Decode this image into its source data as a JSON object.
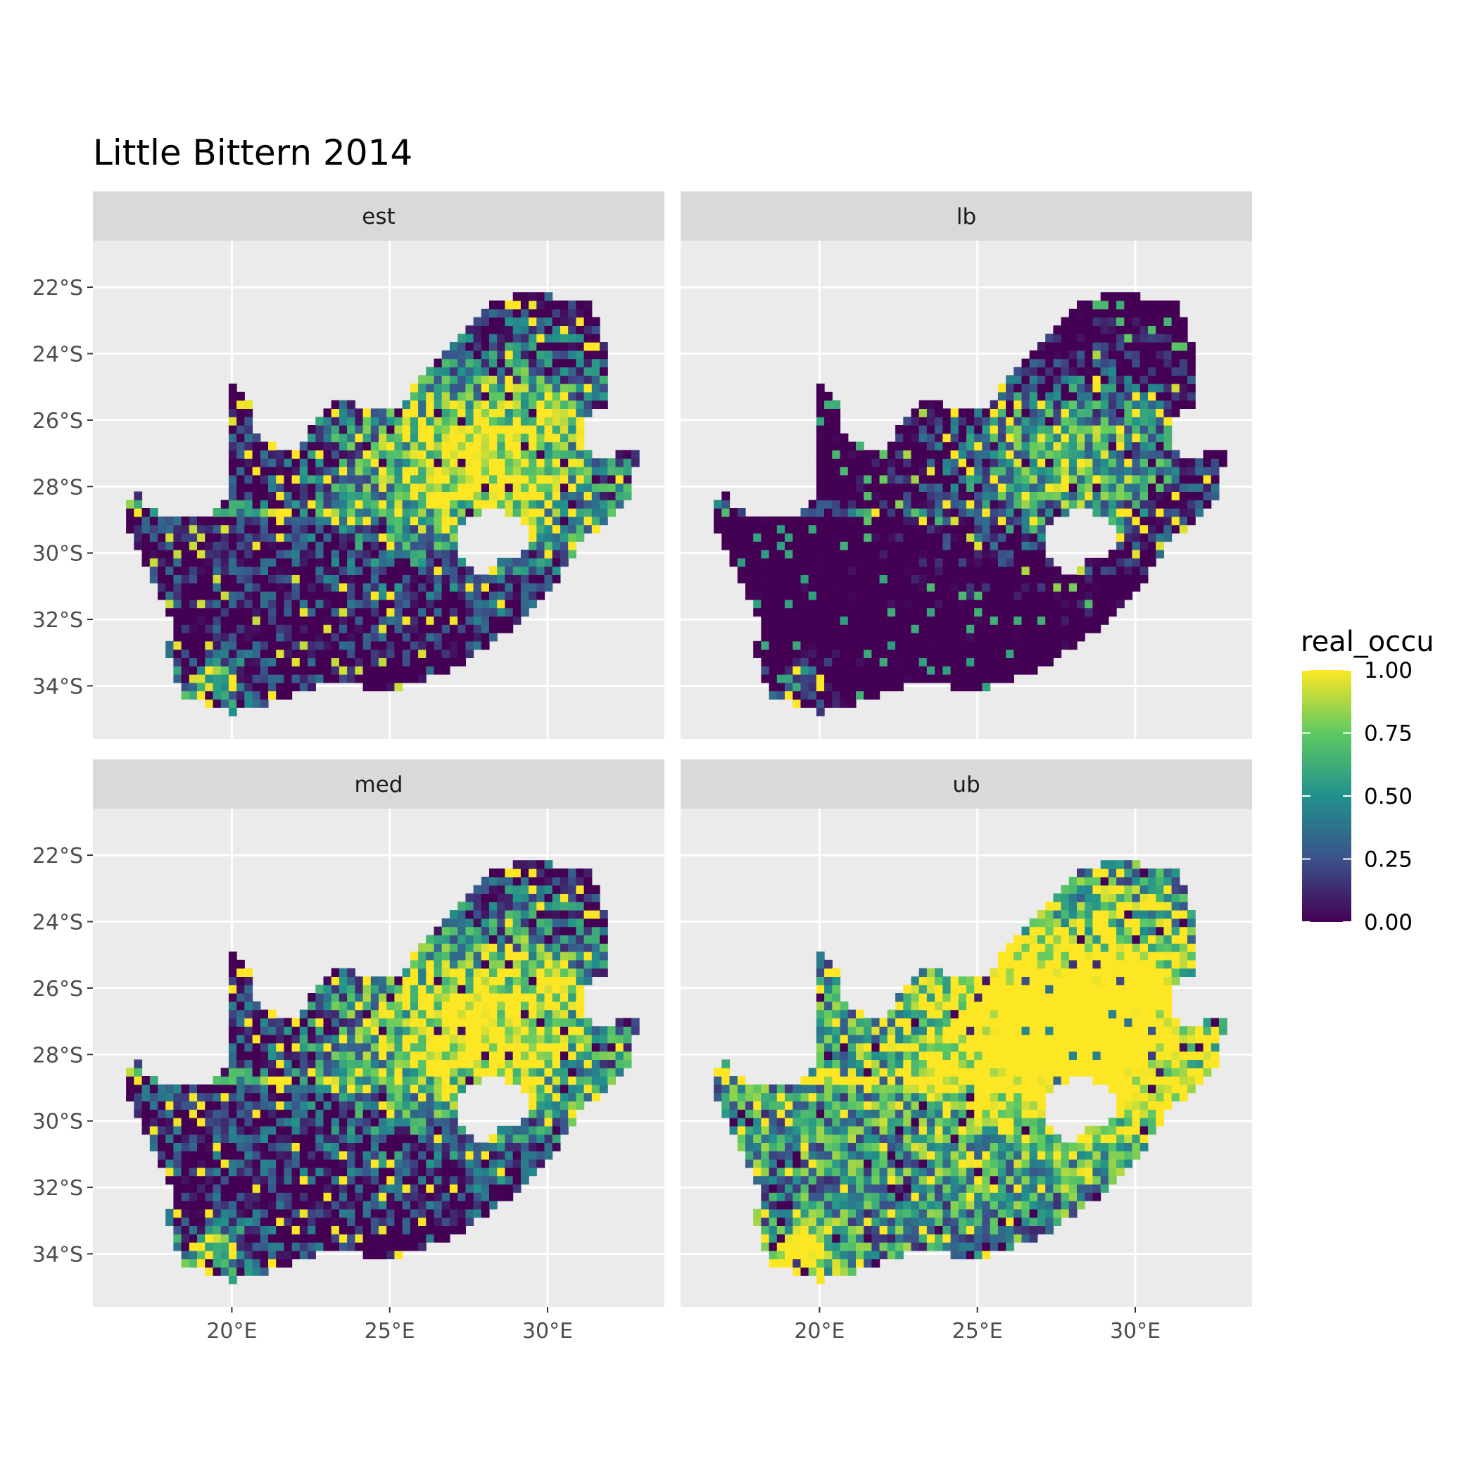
{
  "title": "Little Bittern 2014",
  "legend": {
    "title": "real_occu",
    "ticks": [
      "1.00",
      "0.75",
      "0.50",
      "0.25",
      "0.00"
    ],
    "tick_values": [
      1.0,
      0.75,
      0.5,
      0.25,
      0.0
    ],
    "colors": [
      "#440154",
      "#3b528b",
      "#21918c",
      "#5ec962",
      "#fde725"
    ]
  },
  "colors": {
    "panel_bg": "#ebebeb",
    "strip_bg": "#d9d9d9",
    "grid": "#ffffff",
    "low": "#440154",
    "high": "#fde725"
  },
  "axes": {
    "x_ticks": [
      {
        "value": 20,
        "label": "20°E"
      },
      {
        "value": 25,
        "label": "25°E"
      },
      {
        "value": 30,
        "label": "30°E"
      }
    ],
    "y_ticks": [
      {
        "value": -22,
        "label": "22°S"
      },
      {
        "value": -24,
        "label": "24°S"
      },
      {
        "value": -26,
        "label": "26°S"
      },
      {
        "value": -28,
        "label": "28°S"
      },
      {
        "value": -30,
        "label": "30°S"
      },
      {
        "value": -32,
        "label": "32°S"
      },
      {
        "value": -34,
        "label": "34°S"
      }
    ],
    "xlim": [
      15.6,
      33.7
    ],
    "ylim": [
      -35.6,
      -20.6
    ]
  },
  "panels": [
    {
      "id": "est",
      "label": "est",
      "mean_level": 0.45
    },
    {
      "id": "lb",
      "label": "lb",
      "mean_level": 0.2
    },
    {
      "id": "med",
      "label": "med",
      "mean_level": 0.5
    },
    {
      "id": "ub",
      "label": "ub",
      "mean_level": 0.8
    }
  ]
}
